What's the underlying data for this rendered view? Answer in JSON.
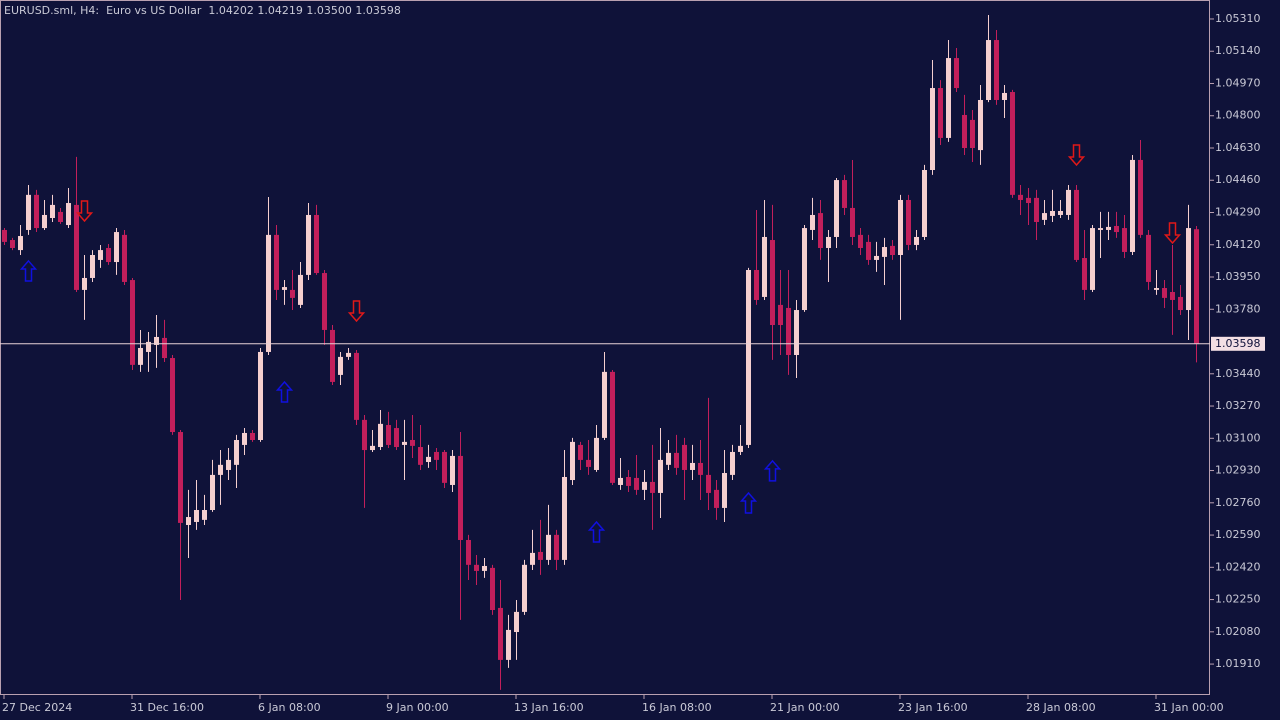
{
  "chart_data": {
    "type": "candlestick",
    "title": "EURUSD.sml, H4:  Euro vs US Dollar  1.04202 1.04219 1.03500 1.03598",
    "up_color": "#f5cfcf",
    "down_color": "#c21f5b",
    "categories": [
      "27 Dec 2024",
      null,
      null,
      null,
      null,
      null,
      null,
      null,
      null,
      null,
      null,
      null,
      null,
      null,
      null,
      null,
      "31 Dec 16:00",
      null,
      null,
      null,
      null,
      null,
      null,
      null,
      null,
      null,
      null,
      null,
      null,
      null,
      null,
      null,
      "6 Jan 08:00",
      null,
      null,
      null,
      null,
      null,
      null,
      null,
      null,
      null,
      null,
      null,
      null,
      null,
      null,
      null,
      "9 Jan 00:00",
      null,
      null,
      null,
      null,
      null,
      null,
      null,
      null,
      null,
      null,
      null,
      null,
      null,
      null,
      null,
      "13 Jan 16:00",
      null,
      null,
      null,
      null,
      null,
      null,
      null,
      null,
      null,
      null,
      null,
      null,
      null,
      null,
      null,
      "16 Jan 08:00",
      null,
      null,
      null,
      null,
      null,
      null,
      null,
      null,
      null,
      null,
      null,
      null,
      null,
      null,
      null,
      "21 Jan 00:00",
      null,
      null,
      null,
      null,
      null,
      null,
      null,
      null,
      null,
      null,
      null,
      null,
      null,
      null,
      null,
      "23 Jan 16:00",
      null,
      null,
      null,
      null,
      null,
      null,
      null,
      null,
      null,
      null,
      null,
      null,
      null,
      null,
      null,
      "28 Jan 08:00",
      null,
      null,
      null,
      null,
      null,
      null,
      null,
      null,
      null,
      null,
      null,
      null,
      null,
      null,
      null,
      "31 Jan 00:00",
      null,
      null,
      null,
      null,
      null
    ],
    "open": [
      1.04198,
      1.04145,
      1.04092,
      1.04198,
      1.04383,
      1.04208,
      1.04261,
      1.04293,
      1.04224,
      1.0433,
      1.03882,
      1.03945,
      1.0404,
      1.04103,
      1.04029,
      1.04172,
      1.03934,
      1.03487,
      1.03555,
      1.03592,
      1.03629,
      1.03523,
      1.03133,
      1.02643,
      1.02659,
      1.0267,
      1.02722,
      1.02907,
      1.02933,
      1.0296,
      1.03065,
      1.03128,
      1.03091,
      1.03555,
      1.04172,
      1.03882,
      1.03882,
      1.03803,
      1.03961,
      1.04277,
      1.03971,
      1.03671,
      1.03434,
      1.03529,
      1.0355,
      1.03197,
      1.03038,
      1.03054,
      1.0317,
      1.03154,
      1.03065,
      1.03091,
      1.03054,
      1.02975,
      1.03028,
      1.03028,
      1.02854,
      1.03007,
      1.02564,
      1.02433,
      1.02401,
      1.02417,
      1.02206,
      1.01932,
      1.02079,
      1.02185,
      1.02433,
      1.02501,
      1.02459,
      1.02591,
      1.02459,
      1.0288,
      1.03065,
      1.02986,
      1.02933,
      1.03102,
      1.0345,
      1.02854,
      1.02896,
      1.02891,
      1.02828,
      1.0287,
      1.02812,
      1.0296,
      1.03023,
      1.03065,
      1.02933,
      1.0297,
      1.02907,
      1.02828,
      1.02733,
      1.02907,
      1.03028,
      1.03065,
      1.03987,
      1.03845,
      1.04145,
      1.03803,
      1.03787,
      1.03539,
      1.03776,
      1.04198,
      1.04287,
      1.04103,
      1.04161,
      1.04461,
      1.04314,
      1.04172,
      1.04135,
      1.0404,
      1.04056,
      1.04114,
      1.04066,
      1.04356,
      1.04119,
      1.04161,
      1.04514,
      1.04946,
      1.04683,
      1.05104,
      1.04804,
      1.04778,
      1.04619,
      1.04883,
      1.05199,
      1.04883,
      1.04925,
      1.04383,
      1.04367,
      1.04367,
      1.04251,
      1.04272,
      1.04277,
      1.04277,
      1.04409,
      1.0405,
      1.03882,
      1.04198,
      1.04198,
      1.04219,
      1.04208,
      1.04082,
      1.04567,
      1.04172,
      1.03882,
      1.03892,
      1.03871,
      1.03845,
      1.03776,
      1.04202
    ],
    "high": [
      1.04208,
      1.04156,
      1.04224,
      1.04435,
      1.04409,
      1.04356,
      1.04383,
      1.04314,
      1.04419,
      1.04583,
      1.04066,
      1.04092,
      1.04119,
      1.04124,
      1.04208,
      1.04198,
      1.03945,
      1.03671,
      1.0366,
      1.0375,
      1.03724,
      1.03539,
      1.03144,
      1.02828,
      1.0288,
      1.02802,
      1.02986,
      1.03038,
      1.03049,
      1.03118,
      1.03154,
      1.03144,
      1.03576,
      1.04372,
      1.04224,
      1.03934,
      1.03987,
      1.04029,
      1.0434,
      1.0433,
      1.03987,
      1.03697,
      1.03555,
      1.03576,
      1.03565,
      1.03223,
      1.03144,
      1.03249,
      1.03239,
      1.03197,
      1.03197,
      1.03223,
      1.0317,
      1.03065,
      1.03049,
      1.03038,
      1.03038,
      1.03133,
      1.02591,
      1.02485,
      1.02469,
      1.02433,
      1.02353,
      1.02169,
      1.02248,
      1.02459,
      1.02617,
      1.0267,
      1.02749,
      1.02617,
      1.03038,
      1.03102,
      1.03081,
      1.03091,
      1.0317,
      1.03555,
      1.0346,
      1.02996,
      1.02933,
      1.03012,
      1.02933,
      1.03065,
      1.03154,
      1.03091,
      1.03118,
      1.03102,
      1.03065,
      1.03091,
      1.03313,
      1.0288,
      1.03038,
      1.03065,
      1.0317,
      1.03998,
      1.04303,
      1.04356,
      1.0433,
      1.03987,
      1.03987,
      1.03829,
      1.04224,
      1.04367,
      1.04356,
      1.04198,
      1.04472,
      1.04488,
      1.04567,
      1.04208,
      1.04172,
      1.04135,
      1.04156,
      1.04145,
      1.04383,
      1.04383,
      1.04198,
      1.04541,
      1.05094,
      1.04988,
      1.05199,
      1.05157,
      1.0491,
      1.0483,
      1.04962,
      1.05331,
      1.05252,
      1.04962,
      1.04936,
      1.04435,
      1.04419,
      1.04409,
      1.04356,
      1.04409,
      1.04356,
      1.04435,
      1.04435,
      1.04198,
      1.04224,
      1.04293,
      1.04293,
      1.04293,
      1.04277,
      1.04593,
      1.04672,
      1.04198,
      1.03987,
      1.03934,
      1.04119,
      1.03908,
      1.0433,
      1.04219
    ],
    "low": [
      1.04119,
      1.04092,
      1.04066,
      1.04172,
      1.04187,
      1.04198,
      1.0424,
      1.0423,
      1.04208,
      1.03871,
      1.03724,
      1.03924,
      1.03998,
      1.04014,
      1.03961,
      1.03908,
      1.0346,
      1.0345,
      1.0345,
      1.03471,
      1.03502,
      1.03118,
      1.02248,
      1.02469,
      1.02617,
      1.02643,
      1.02712,
      1.02749,
      1.0288,
      1.02838,
      1.03012,
      1.03081,
      1.03081,
      1.03539,
      1.03829,
      1.03803,
      1.03776,
      1.03787,
      1.03934,
      1.03961,
      1.03592,
      1.03381,
      1.03381,
      1.03513,
      1.0317,
      1.02733,
      1.03028,
      1.03038,
      1.03049,
      1.03038,
      1.0288,
      1.02996,
      1.02933,
      1.02944,
      1.02933,
      1.02838,
      1.02817,
      1.02143,
      1.02353,
      1.02327,
      1.02364,
      1.02169,
      1.01774,
      1.0189,
      1.01932,
      1.02169,
      1.02406,
      1.0238,
      1.02433,
      1.02406,
      1.02433,
      1.02854,
      1.02933,
      1.02907,
      1.02923,
      1.03091,
      1.02854,
      1.02828,
      1.02817,
      1.02802,
      1.02775,
      1.02617,
      1.0268,
      1.02933,
      1.02907,
      1.02775,
      1.0288,
      1.02775,
      1.02722,
      1.0267,
      1.02659,
      1.0288,
      1.03012,
      1.03049,
      1.03803,
      1.03829,
      1.03513,
      1.03539,
      1.03434,
      1.03418,
      1.03766,
      1.04145,
      1.0404,
      1.03924,
      1.04103,
      1.04277,
      1.04119,
      1.04066,
      1.04014,
      1.03977,
      1.03908,
      1.0404,
      1.03724,
      1.04092,
      1.04092,
      1.04145,
      1.04488,
      1.04646,
      1.04662,
      1.04925,
      1.04593,
      1.04556,
      1.04541,
      1.04872,
      1.04857,
      1.04788,
      1.04367,
      1.04277,
      1.04224,
      1.04145,
      1.04224,
      1.0424,
      1.04261,
      1.04251,
      1.04029,
      1.03829,
      1.03871,
      1.0405,
      1.04145,
      1.04156,
      1.0405,
      1.04066,
      1.04156,
      1.03882,
      1.03856,
      1.03787,
      1.03645,
      1.0375,
      1.03618,
      1.035
    ],
    "close": [
      1.04135,
      1.04103,
      1.04166,
      1.04383,
      1.04208,
      1.04277,
      1.0433,
      1.0424,
      1.0434,
      1.03882,
      1.03945,
      1.04066,
      1.04092,
      1.04029,
      1.04187,
      1.03924,
      1.03487,
      1.03576,
      1.03608,
      1.03634,
      1.03523,
      1.03133,
      1.02654,
      1.02685,
      1.02722,
      1.02722,
      1.02907,
      1.0296,
      1.02986,
      1.03091,
      1.03128,
      1.03091,
      1.03555,
      1.04172,
      1.03882,
      1.03897,
      1.0384,
      1.03961,
      1.04277,
      1.03971,
      1.03671,
      1.03397,
      1.03529,
      1.0355,
      1.03197,
      1.03038,
      1.0306,
      1.03176,
      1.03065,
      1.03054,
      1.03081,
      1.0306,
      1.0296,
      1.03002,
      1.02986,
      1.02865,
      1.03007,
      1.02564,
      1.02433,
      1.02401,
      1.02427,
      1.02195,
      1.01932,
      1.0209,
      1.02185,
      1.02433,
      1.02496,
      1.02459,
      1.02591,
      1.02459,
      1.02896,
      1.03081,
      1.02986,
      1.02949,
      1.03102,
      1.0345,
      1.02865,
      1.02891,
      1.02849,
      1.02828,
      1.0287,
      1.02812,
      1.02986,
      1.03023,
      1.02944,
      1.02933,
      1.0297,
      1.02907,
      1.02812,
      1.02733,
      1.02917,
      1.03028,
      1.0306,
      1.03987,
      1.03829,
      1.04161,
      1.03697,
      1.03697,
      1.03539,
      1.03776,
      1.04208,
      1.04277,
      1.04103,
      1.04161,
      1.04461,
      1.04314,
      1.04161,
      1.04103,
      1.0404,
      1.04061,
      1.04108,
      1.04066,
      1.04356,
      1.04119,
      1.04161,
      1.04514,
      1.04946,
      1.04683,
      1.05104,
      1.04946,
      1.0463,
      1.0463,
      1.04883,
      1.05199,
      1.04883,
      1.0492,
      1.04383,
      1.04356,
      1.0434,
      1.0424,
      1.04287,
      1.04298,
      1.04298,
      1.04409,
      1.0404,
      1.03882,
      1.04208,
      1.04208,
      1.04214,
      1.04187,
      1.04082,
      1.04567,
      1.04172,
      1.03924,
      1.03892,
      1.0384,
      1.03829,
      1.03776,
      1.04208,
      1.03598
    ],
    "up_arrows": {
      "color": "#1010e0",
      "points": [
        {
          "at": 3,
          "value": 1.03982
        },
        {
          "at": 35,
          "value": 1.03344
        },
        {
          "at": 74,
          "value": 1.02606
        },
        {
          "at": 93,
          "value": 1.02759
        },
        {
          "at": 96,
          "value": 1.02928
        }
      ]
    },
    "down_arrows": {
      "color": "#e01818",
      "points": [
        {
          "at": 10,
          "value": 1.04298
        },
        {
          "at": 44,
          "value": 1.03771
        },
        {
          "at": 134,
          "value": 1.04593
        },
        {
          "at": 146,
          "value": 1.04182
        }
      ]
    },
    "ylim": [
      1.01747,
      1.0541
    ],
    "yticks": [
      {
        "value": 1.0531,
        "label": "1.05310"
      },
      {
        "value": 1.0514,
        "label": "1.05140"
      },
      {
        "value": 1.0497,
        "label": "1.04970"
      },
      {
        "value": 1.048,
        "label": "1.04800"
      },
      {
        "value": 1.0463,
        "label": "1.04630"
      },
      {
        "value": 1.0446,
        "label": "1.04460"
      },
      {
        "value": 1.0429,
        "label": "1.04290"
      },
      {
        "value": 1.0412,
        "label": "1.04120"
      },
      {
        "value": 1.0395,
        "label": "1.03950"
      },
      {
        "value": 1.0378,
        "label": "1.03780"
      },
      {
        "value": 1.0344,
        "label": "1.03440"
      },
      {
        "value": 1.0327,
        "label": "1.03270"
      },
      {
        "value": 1.031,
        "label": "1.03100"
      },
      {
        "value": 1.0293,
        "label": "1.02930"
      },
      {
        "value": 1.0276,
        "label": "1.02760"
      },
      {
        "value": 1.0259,
        "label": "1.02590"
      },
      {
        "value": 1.0242,
        "label": "1.02420"
      },
      {
        "value": 1.0225,
        "label": "1.02250"
      },
      {
        "value": 1.0208,
        "label": "1.02080"
      },
      {
        "value": 1.0191,
        "label": "1.01910"
      }
    ],
    "grid": false
  }
}
